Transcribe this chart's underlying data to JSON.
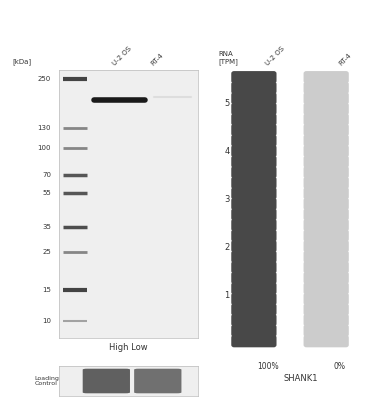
{
  "ladder_kda": [
    250,
    130,
    100,
    70,
    55,
    35,
    25,
    15,
    10
  ],
  "band_kda": 190,
  "sample_labels": [
    "U-2 OS",
    "RT-4"
  ],
  "high_low_label": "High Low",
  "loading_control_label": "Loading\nControl",
  "kda_label": "[kDa]",
  "rna_title": "RNA\n[TPM]",
  "col1_label": "U-2 OS",
  "col2_label": "RT-4",
  "gene_label": "SHANK1",
  "pct1_label": "100%",
  "pct2_label": "0%",
  "n_dots": 26,
  "dot_color_dark": "#484848",
  "dot_color_light": "#cccccc",
  "ytick_vals": [
    1,
    2,
    3,
    4,
    5
  ],
  "log_min": 0.9,
  "log_max": 2.45,
  "blot_bg": "#efefef",
  "blot_edge": "#bbbbbb",
  "lc_bg": "#efefef"
}
